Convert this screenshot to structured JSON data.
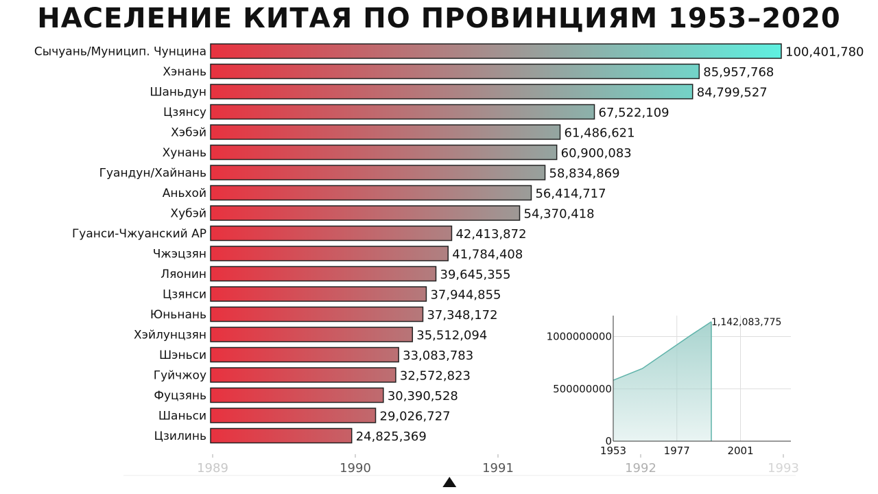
{
  "title": "НАСЕЛЕНИЕ КИТАЯ ПО ПРОВИНЦИЯМ 1953–2020",
  "chart_data": [
    {
      "type": "bar",
      "orientation": "horizontal",
      "categories": [
        "Сычуань/Муницип. Чунцина",
        "Хэнань",
        "Шаньдун",
        "Цзянсу",
        "Хэбэй",
        "Хунань",
        "Гуандун/Хайнань",
        "Аньхой",
        "Хубэй",
        "Гуанси-Чжуанский АР",
        "Чжэцзян",
        "Ляонин",
        "Цзянси",
        "Юньнань",
        "Хэйлунцзян",
        "Шэньси",
        "Гуйчжоу",
        "Фуцзянь",
        "Шаньси",
        "Цзилинь"
      ],
      "values": [
        100401780,
        85957768,
        84799527,
        67522109,
        61486621,
        60900083,
        58834869,
        56414717,
        54370418,
        42413872,
        41784408,
        39645355,
        37944855,
        37348172,
        35512094,
        33083783,
        32572823,
        30390528,
        29026727,
        24825369
      ],
      "value_labels": [
        "100,401,780",
        "85,957,768",
        "84,799,527",
        "67,522,109",
        "61,486,621",
        "60,900,083",
        "58,834,869",
        "56,414,717",
        "54,370,418",
        "42,413,872",
        "41,784,408",
        "39,645,355",
        "37,944,855",
        "37,348,172",
        "35,512,094",
        "33,083,783",
        "32,572,823",
        "30,390,528",
        "29,026,727",
        "24,825,369"
      ],
      "gradient_colors": [
        "#e8323f",
        "#5ef0e0"
      ],
      "xlim": [
        0,
        100401780
      ]
    },
    {
      "type": "area",
      "x": [
        1953,
        1964,
        1982,
        1990
      ],
      "values": [
        582603417,
        694581759,
        1008180738,
        1142083775
      ],
      "end_label": "1,142,083,775",
      "yticks": [
        "0",
        "500000000",
        "1000000000"
      ],
      "ytick_values": [
        0,
        500000000,
        1000000000
      ],
      "xticks": [
        "1953",
        "1977",
        "2001"
      ],
      "xtick_values": [
        1953,
        1977,
        2001
      ],
      "xlim": [
        1953,
        2020
      ],
      "ylim": [
        0,
        1200000000
      ],
      "fill_color": "#a9d4cf",
      "line_color": "#5fb3aa",
      "grid": true
    }
  ],
  "timeline": {
    "years": [
      "1989",
      "1990",
      "1991",
      "1992",
      "1993"
    ],
    "current": 1990.66
  }
}
